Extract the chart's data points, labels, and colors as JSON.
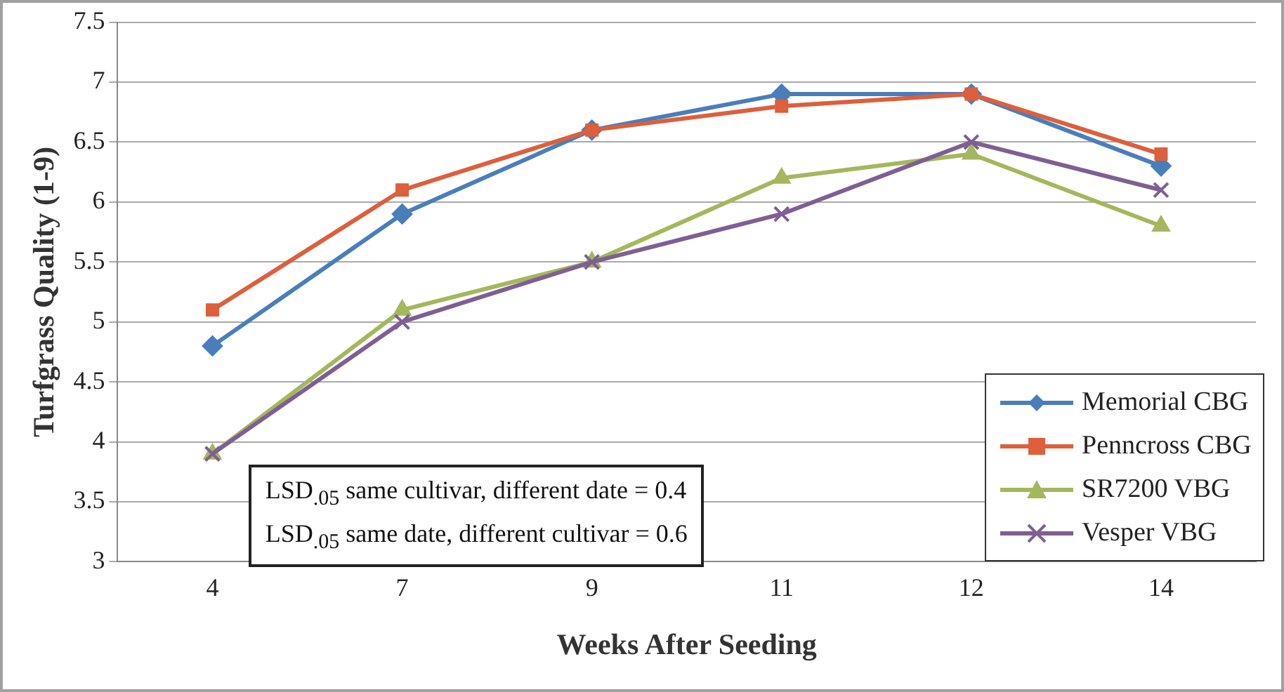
{
  "chart_data": {
    "type": "line",
    "xlabel": "Weeks After Seeding",
    "ylabel": "Turfgrass Quality (1-9)",
    "categories": [
      "4",
      "7",
      "9",
      "11",
      "12",
      "14"
    ],
    "series": [
      {
        "name": "Memorial CBG",
        "color": "#4a7ebb",
        "marker": "diamond",
        "values": [
          4.8,
          5.9,
          6.6,
          6.9,
          6.9,
          6.3
        ]
      },
      {
        "name": "Penncross CBG",
        "color": "#dd5f3c",
        "marker": "square",
        "values": [
          5.1,
          6.1,
          6.6,
          6.8,
          6.9,
          6.4
        ]
      },
      {
        "name": "SR7200 VBG",
        "color": "#a4b75c",
        "marker": "triangle",
        "values": [
          3.9,
          5.1,
          5.5,
          6.2,
          6.4,
          5.8
        ]
      },
      {
        "name": "Vesper VBG",
        "color": "#7e5f94",
        "marker": "cross",
        "values": [
          3.9,
          5.0,
          5.5,
          5.9,
          6.5,
          6.1
        ]
      }
    ],
    "ylim": [
      3,
      7.5
    ],
    "yticks": [
      3,
      3.5,
      4,
      4.5,
      5,
      5.5,
      6,
      6.5,
      7,
      7.5
    ],
    "grid": "y",
    "legend": "bottom right",
    "annotations": [
      "LSD$_{.05}$ same cultivar, different date = 0.4",
      "LSD$_{.05}$ same date, different cultivar = 0.6"
    ]
  }
}
